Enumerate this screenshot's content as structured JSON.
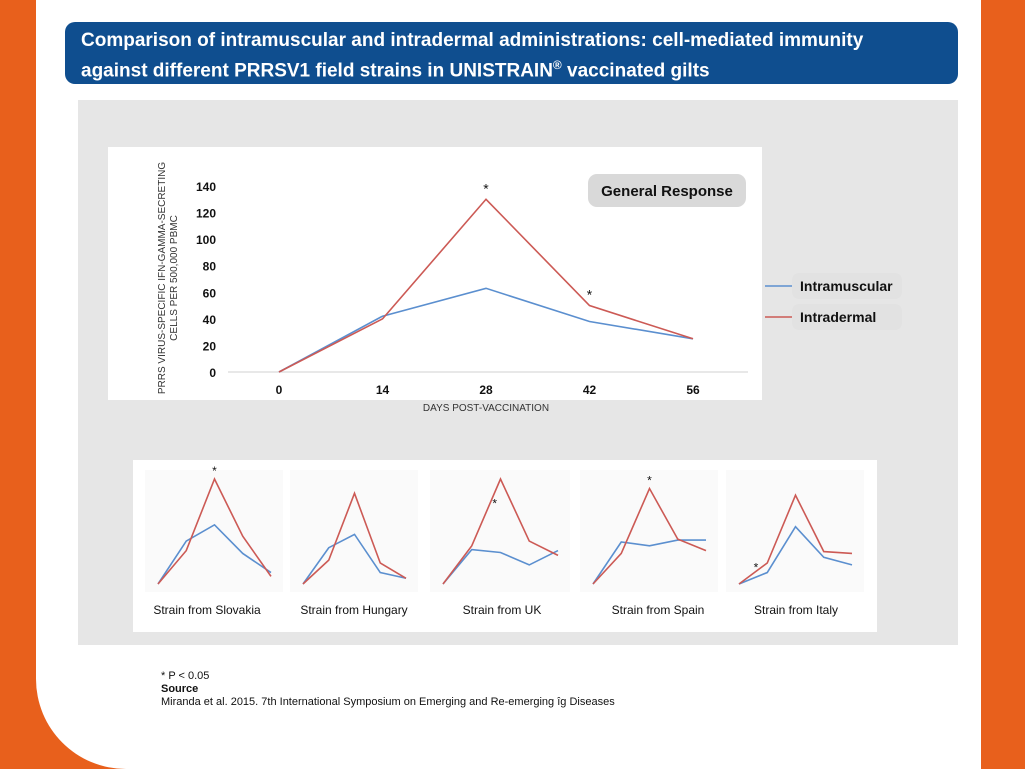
{
  "title_line1": "Comparison of intramuscular and intradermal administrations: cell-mediated immunity",
  "title_line2_pre": "against different PRRSV1 field strains in UNISTRAIN",
  "title_sup": "®",
  "title_line2_post": " vaccinated gilts",
  "footnote": "* P < 0.05",
  "source_label": "Source",
  "source_text": "Miranda et al. 2015. 7th International Symposium on Emerging and Re-emerging îg Diseases",
  "colors": {
    "intramuscular": "#5b8fcf",
    "intradermal": "#cc5a55",
    "orange": "#e8601c",
    "title_bg": "#0f4e8f"
  },
  "chart_data": [
    {
      "type": "line",
      "title": "General Response",
      "xlabel": "DAYS POST-VACCINATION",
      "ylabel": "PRRS VIRUS-SPECIFIC IFN-GAMMA-SECRETING CELLS PER 500,000 PBMC",
      "categories": [
        "0",
        "14",
        "28",
        "42",
        "56"
      ],
      "yticks": [
        "0",
        "20",
        "40",
        "60",
        "80",
        "100",
        "120",
        "140"
      ],
      "ylim": [
        0,
        140
      ],
      "grid": false,
      "legend": "right",
      "series": [
        {
          "name": "Intramuscular",
          "values": [
            0,
            42,
            63,
            38,
            25
          ]
        },
        {
          "name": "Intradermal",
          "values": [
            0,
            40,
            130,
            50,
            25
          ]
        }
      ],
      "annotations": [
        {
          "x": "28",
          "y": 130,
          "text": "*"
        },
        {
          "x": "42",
          "y": 50,
          "text": "*"
        }
      ]
    },
    {
      "type": "line",
      "title": "Strain from Slovakia",
      "series": [
        {
          "name": "Intramuscular",
          "values": [
            0,
            45,
            62,
            32,
            12
          ]
        },
        {
          "name": "Intradermal",
          "values": [
            0,
            35,
            110,
            50,
            8
          ]
        }
      ],
      "annotations": [
        {
          "point": 2,
          "text": "*"
        }
      ]
    },
    {
      "type": "line",
      "title": "Strain from Hungary",
      "series": [
        {
          "name": "Intramuscular",
          "values": [
            0,
            38,
            52,
            12,
            6
          ]
        },
        {
          "name": "Intradermal",
          "values": [
            0,
            25,
            95,
            22,
            6
          ]
        }
      ],
      "annotations": []
    },
    {
      "type": "line",
      "title": "Strain from UK",
      "series": [
        {
          "name": "Intramuscular",
          "values": [
            0,
            36,
            33,
            20,
            35
          ]
        },
        {
          "name": "Intradermal",
          "values": [
            0,
            40,
            110,
            45,
            30
          ]
        }
      ],
      "annotations": [
        {
          "x": 1.8,
          "y": 80,
          "text": "*"
        }
      ]
    },
    {
      "type": "line",
      "title": "Strain from Spain",
      "series": [
        {
          "name": "Intramuscular",
          "values": [
            0,
            44,
            40,
            46,
            46
          ]
        },
        {
          "name": "Intradermal",
          "values": [
            0,
            32,
            100,
            47,
            35
          ]
        }
      ],
      "annotations": [
        {
          "point": 2,
          "text": "*"
        }
      ]
    },
    {
      "type": "line",
      "title": "Strain from Italy",
      "series": [
        {
          "name": "Intramuscular",
          "values": [
            0,
            12,
            60,
            28,
            20
          ]
        },
        {
          "name": "Intradermal",
          "values": [
            0,
            22,
            93,
            34,
            32
          ]
        }
      ],
      "annotations": [
        {
          "x": 0.6,
          "y": 13,
          "text": "*"
        }
      ]
    }
  ]
}
